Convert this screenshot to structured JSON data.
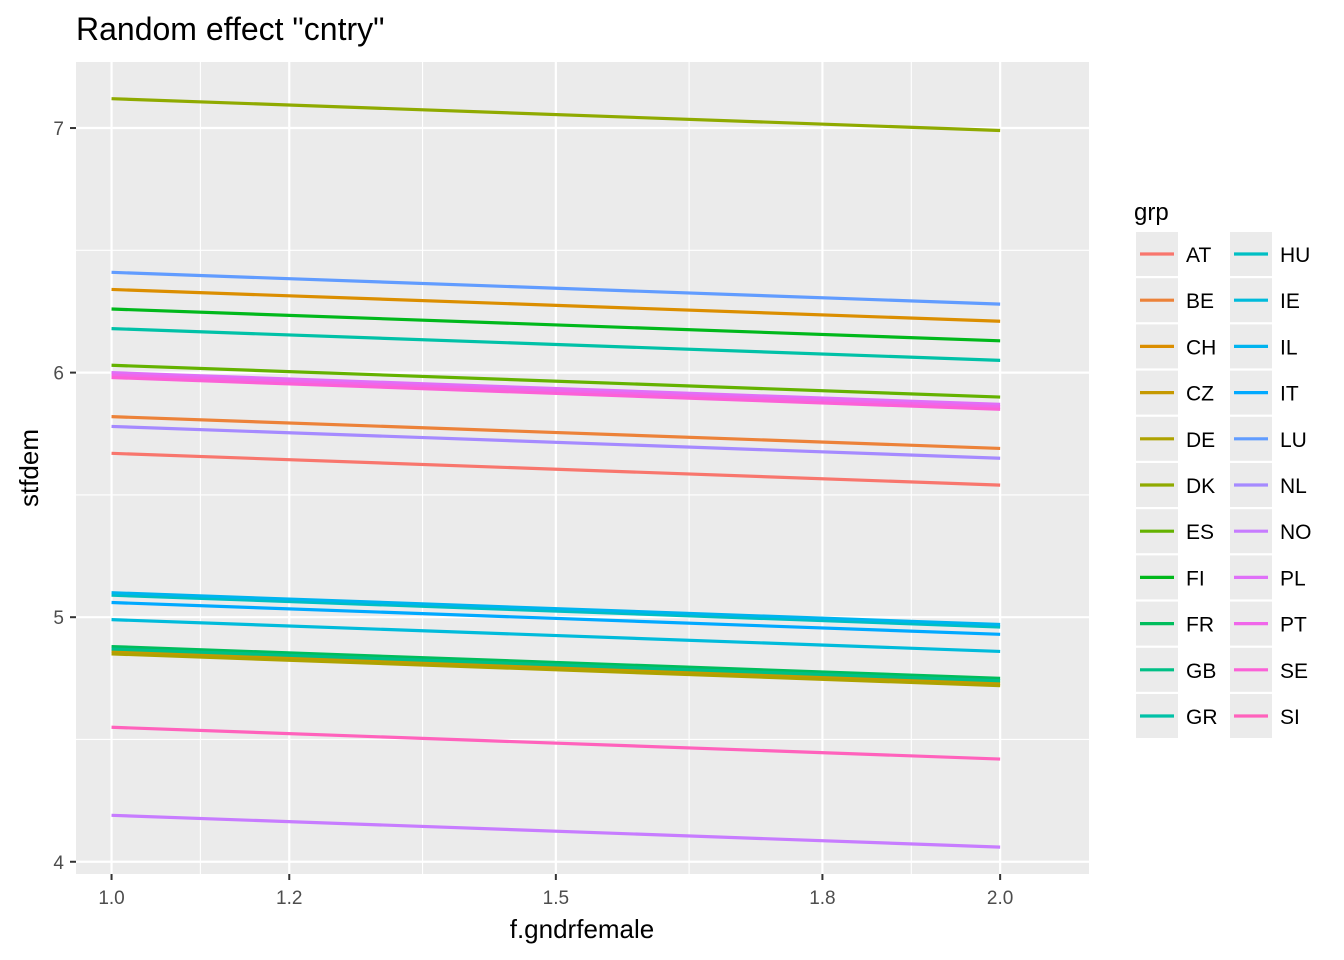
{
  "chart_data": {
    "type": "line",
    "title": "Random effect \"cntry\"",
    "xlabel": "f.gndrfemale",
    "ylabel": "stfdem",
    "xlim": [
      0.96,
      2.1
    ],
    "ylim": [
      3.95,
      7.27
    ],
    "x_ticks": [
      1.0,
      1.2,
      1.5,
      1.8,
      2.0
    ],
    "x_tick_labels": [
      "1.0",
      "1.2",
      "1.5",
      "1.8",
      "2.0"
    ],
    "y_ticks": [
      4,
      5,
      6,
      7
    ],
    "y_tick_labels": [
      "4",
      "5",
      "6",
      "7"
    ],
    "grid": true,
    "legend": {
      "title": "grp",
      "position": "right",
      "columns": 2
    },
    "x": [
      1.0,
      2.0
    ],
    "series": [
      {
        "name": "AT",
        "color": "#F8766D",
        "values": [
          5.67,
          5.54
        ]
      },
      {
        "name": "BE",
        "color": "#E9842C",
        "values": [
          5.82,
          5.69
        ]
      },
      {
        "name": "CH",
        "color": "#D69100",
        "values": [
          6.34,
          6.21
        ]
      },
      {
        "name": "CZ",
        "color": "#BC9D00",
        "values": [
          4.86,
          4.73
        ]
      },
      {
        "name": "DE",
        "color": "#9CA700",
        "values": [
          4.85,
          4.72
        ]
      },
      {
        "name": "DK",
        "color": "#6FB000",
        "values": [
          7.12,
          6.99
        ]
      },
      {
        "name": "ES",
        "color": "#00B813",
        "values": [
          6.03,
          5.9
        ]
      },
      {
        "name": "FI",
        "color": "#00BD61",
        "values": [
          6.26,
          6.13
        ]
      },
      {
        "name": "FR",
        "color": "#00C08E",
        "values": [
          4.88,
          4.75
        ]
      },
      {
        "name": "GB",
        "color": "#00C0B4",
        "values": [
          4.87,
          4.74
        ]
      },
      {
        "name": "GR",
        "color": "#00BDD4",
        "values": [
          6.18,
          6.05
        ]
      },
      {
        "name": "HU",
        "color": "#00B5EE",
        "values": [
          5.09,
          4.96
        ]
      },
      {
        "name": "IE",
        "color": "#00A7FF",
        "values": [
          4.99,
          4.86
        ]
      },
      {
        "name": "IL",
        "color": "#7F96FF",
        "values": [
          5.1,
          4.97
        ]
      },
      {
        "name": "IT",
        "color": "#BC81FF",
        "values": [
          5.06,
          4.93
        ]
      },
      {
        "name": "LU",
        "color": "#E26EF7",
        "values": [
          6.41,
          6.28
        ]
      },
      {
        "name": "NL",
        "color": "#F863DF",
        "values": [
          5.78,
          5.65
        ]
      },
      {
        "name": "NO",
        "color": "#FF62BF",
        "values": [
          4.19,
          4.06
        ]
      },
      {
        "name": "PL",
        "color": "#FF6A9A",
        "values": [
          6.0,
          5.87
        ]
      },
      {
        "name": "PT",
        "color": "#FF6C91",
        "values": [
          5.99,
          5.86
        ]
      },
      {
        "name": "SE",
        "color": "#FF6A98",
        "values": [
          5.98,
          5.85
        ]
      },
      {
        "name": "SI",
        "color": "#FF5B8C",
        "values": [
          4.55,
          4.42
        ]
      }
    ],
    "legend_colors": [
      "#F8766D",
      "#EC8239",
      "#DB8E00",
      "#C69900",
      "#AEA200",
      "#8FAA00",
      "#64B200",
      "#00B81B",
      "#00BD5C",
      "#00C086",
      "#00C1A7",
      "#00BFC4",
      "#00BBDB",
      "#00B4EF",
      "#00A9FF",
      "#619CFF",
      "#A58AFF",
      "#C77CFF",
      "#DF70F8",
      "#F066EA",
      "#FB61D7",
      "#FF62BC"
    ],
    "line_colors": [
      "#F8766D",
      "#EC8239",
      "#DB8E00",
      "#C69900",
      "#AEA200",
      "#8FAA00",
      "#64B200",
      "#00B81B",
      "#00BD5C",
      "#00C086",
      "#00C1A7",
      "#00BFC4",
      "#00BBDB",
      "#00B4EF",
      "#00A9FF",
      "#619CFF",
      "#A58AFF",
      "#C77CFF",
      "#DF70F8",
      "#F066EA",
      "#FB61D7",
      "#FF62BC"
    ]
  }
}
